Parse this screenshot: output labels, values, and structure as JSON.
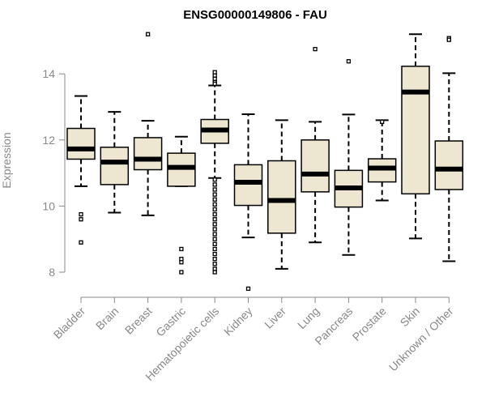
{
  "chart_data": {
    "type": "boxplot",
    "title": "ENSG00000149806 - FAU",
    "xlabel": "",
    "ylabel": "Expression",
    "ylim": [
      7.4,
      15.2
    ],
    "yticks": [
      8,
      10,
      12,
      14
    ],
    "box_fill": "#ede7d1",
    "axis_color": "#888888",
    "series": [
      {
        "name": "Bladder",
        "whisker_low": 10.6,
        "q1": 11.42,
        "median": 11.73,
        "q3": 12.35,
        "whisker_high": 13.33,
        "outliers": [
          9.75,
          9.6,
          8.9
        ]
      },
      {
        "name": "Brain",
        "whisker_low": 9.8,
        "q1": 10.65,
        "median": 11.33,
        "q3": 11.78,
        "whisker_high": 12.85,
        "outliers": []
      },
      {
        "name": "Breast",
        "whisker_low": 9.72,
        "q1": 11.1,
        "median": 11.42,
        "q3": 12.07,
        "whisker_high": 12.58,
        "outliers": [
          15.2
        ]
      },
      {
        "name": "Gastric",
        "whisker_low": 10.6,
        "q1": 10.6,
        "median": 11.17,
        "q3": 11.6,
        "whisker_high": 12.1,
        "outliers": [
          8.7,
          8.4,
          8.3,
          8.0
        ]
      },
      {
        "name": "Hematopoietic cells",
        "whisker_low": 10.85,
        "q1": 11.9,
        "median": 12.3,
        "q3": 12.62,
        "whisker_high": 13.65,
        "outliers": [
          14.05,
          13.95,
          13.85,
          13.75,
          13.7,
          10.8,
          10.65,
          10.5,
          10.35,
          10.2,
          10.05,
          9.9,
          9.75,
          9.6,
          9.45,
          9.3,
          9.15,
          9.0,
          8.85,
          8.7,
          8.55,
          8.4,
          8.25,
          8.1,
          8.0
        ]
      },
      {
        "name": "Kidney",
        "whisker_low": 9.05,
        "q1": 10.02,
        "median": 10.72,
        "q3": 11.25,
        "whisker_high": 12.78,
        "outliers": [
          7.5
        ]
      },
      {
        "name": "Liver",
        "whisker_low": 8.1,
        "q1": 9.18,
        "median": 10.17,
        "q3": 11.37,
        "whisker_high": 12.6,
        "outliers": []
      },
      {
        "name": "Lung",
        "whisker_low": 8.9,
        "q1": 10.43,
        "median": 10.97,
        "q3": 12.0,
        "whisker_high": 12.55,
        "outliers": [
          14.75
        ]
      },
      {
        "name": "Pancreas",
        "whisker_low": 8.52,
        "q1": 9.97,
        "median": 10.55,
        "q3": 11.08,
        "whisker_high": 12.77,
        "outliers": [
          14.38
        ]
      },
      {
        "name": "Prostate",
        "whisker_low": 10.17,
        "q1": 10.73,
        "median": 11.15,
        "q3": 11.43,
        "whisker_high": 12.6,
        "outliers": [
          12.55
        ]
      },
      {
        "name": "Skin",
        "whisker_low": 9.02,
        "q1": 10.37,
        "median": 13.45,
        "q3": 14.23,
        "whisker_high": 15.2,
        "outliers": []
      },
      {
        "name": "Unknown / Other",
        "whisker_low": 8.33,
        "q1": 10.5,
        "median": 11.12,
        "q3": 11.97,
        "whisker_high": 14.02,
        "outliers": [
          15.08,
          15.03
        ]
      }
    ]
  }
}
